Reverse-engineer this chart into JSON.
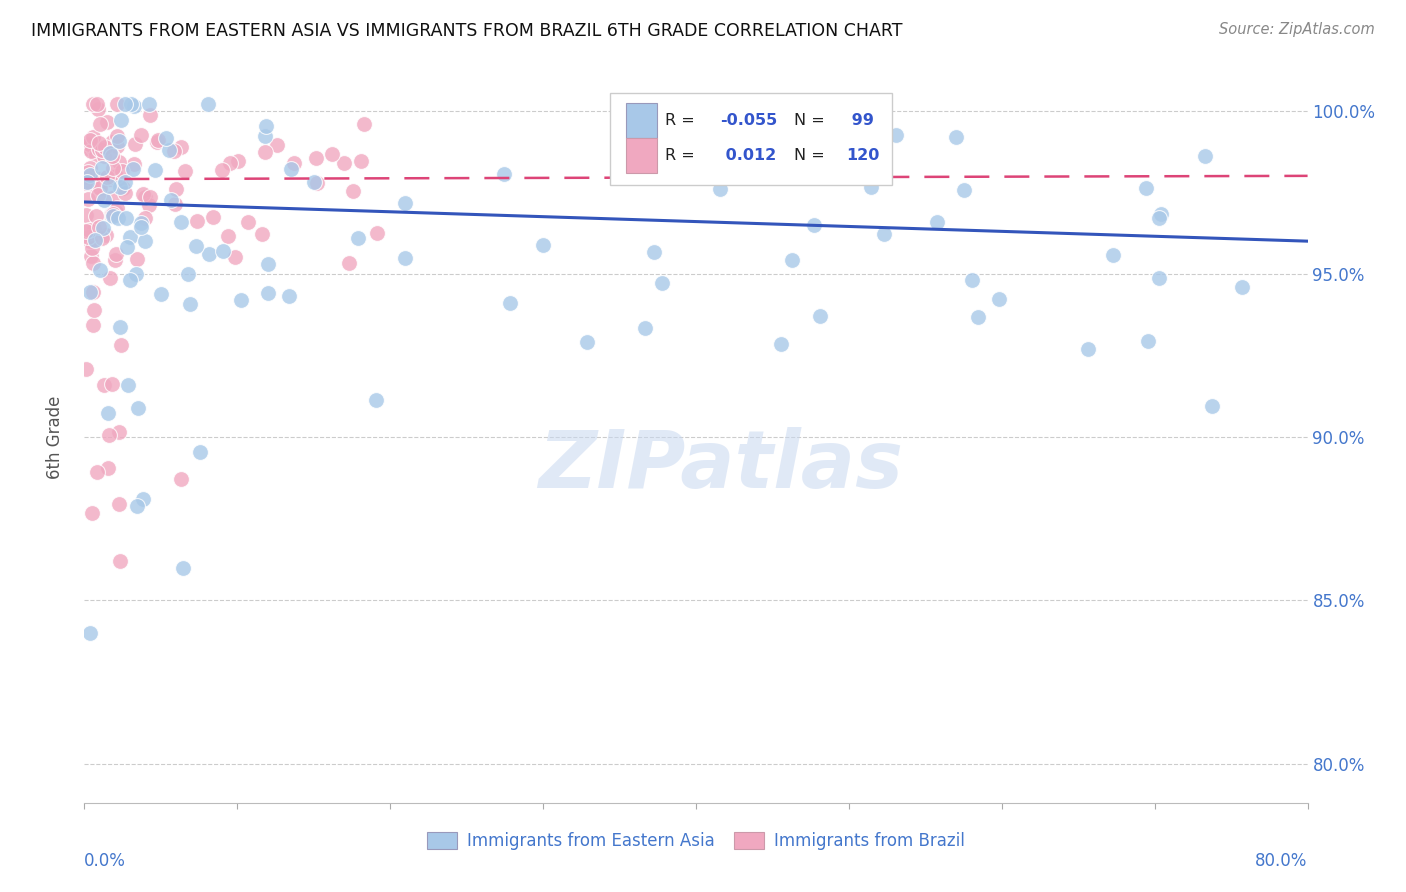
{
  "title": "IMMIGRANTS FROM EASTERN ASIA VS IMMIGRANTS FROM BRAZIL 6TH GRADE CORRELATION CHART",
  "source": "Source: ZipAtlas.com",
  "ylabel": "6th Grade",
  "xlim": [
    0.0,
    0.8
  ],
  "ylim": [
    0.788,
    1.012
  ],
  "yticks": [
    0.8,
    0.85,
    0.9,
    0.95,
    1.0
  ],
  "ytick_labels": [
    "80.0%",
    "85.0%",
    "90.0%",
    "95.0%",
    "100.0%"
  ],
  "blue_R": -0.055,
  "blue_N": 99,
  "pink_R": 0.012,
  "pink_N": 120,
  "blue_color": "#a8c8e8",
  "pink_color": "#f0a8c0",
  "blue_line_color": "#3355bb",
  "pink_line_color": "#dd4477",
  "legend_label_blue": "Immigrants from Eastern Asia",
  "legend_label_pink": "Immigrants from Brazil",
  "watermark": "ZIPatlas",
  "blue_trend_x0": 0.0,
  "blue_trend_y0": 0.972,
  "blue_trend_x1": 0.8,
  "blue_trend_y1": 0.96,
  "pink_trend_x0": 0.0,
  "pink_trend_y0": 0.979,
  "pink_trend_x1": 0.8,
  "pink_trend_y1": 0.98
}
